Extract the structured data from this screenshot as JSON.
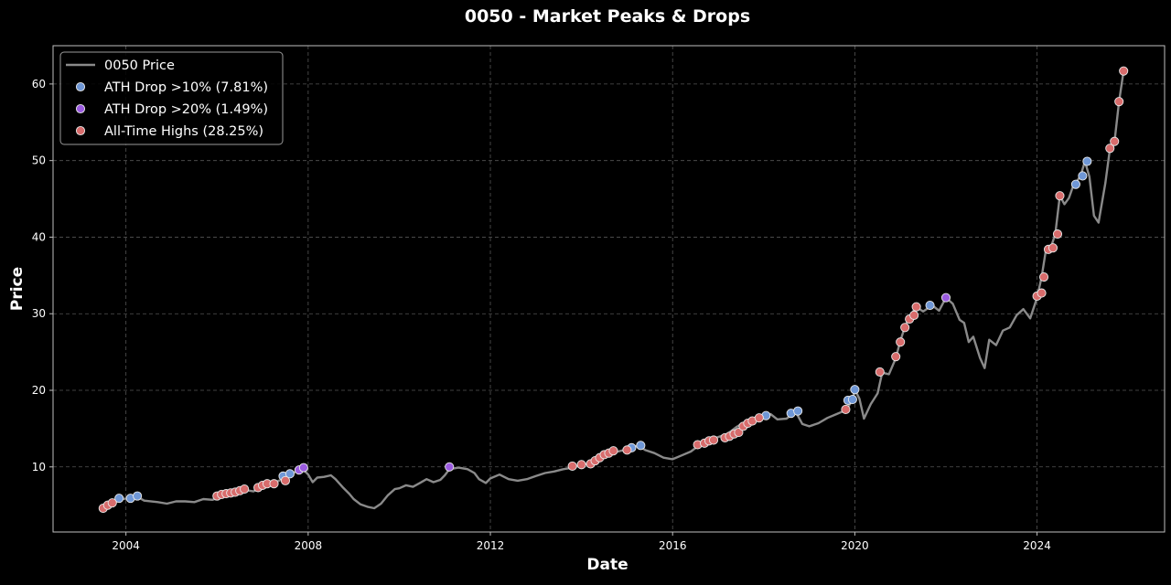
{
  "colors": {
    "background": "#000000",
    "price_line": "#8a8a8a",
    "ath_drop_10": "#6f97d6",
    "ath_drop_20": "#9b5be0",
    "all_time_high": "#d86c6c",
    "grid": "#555555",
    "axes": "#bfbfbf",
    "text": "#ffffff"
  },
  "chart_data": {
    "type": "line",
    "title": "0050 - Market Peaks & Drops",
    "xlabel": "Date",
    "ylabel": "Price",
    "xlim": [
      2002.4,
      2026.8
    ],
    "ylim": [
      1.5,
      65
    ],
    "x_ticks": [
      2004,
      2008,
      2012,
      2016,
      2020,
      2024
    ],
    "x_tick_labels": [
      "2004",
      "2008",
      "2012",
      "2016",
      "2020",
      "2024"
    ],
    "y_ticks": [
      10,
      20,
      30,
      40,
      50,
      60
    ],
    "y_tick_labels": [
      "10",
      "20",
      "30",
      "40",
      "50",
      "60"
    ],
    "grid": true,
    "legend_position": "top-left",
    "legend": [
      {
        "label": "0050 Price",
        "kind": "line",
        "series": "price"
      },
      {
        "label": "ATH Drop >10% (7.81%)",
        "kind": "marker",
        "series": "ath_drop_10"
      },
      {
        "label": "ATH Drop >20% (1.49%)",
        "kind": "marker",
        "series": "ath_drop_20"
      },
      {
        "label": "All-Time Highs (28.25%)",
        "kind": "marker",
        "series": "all_time_high"
      }
    ],
    "series": [
      {
        "id": "price",
        "name": "0050 Price",
        "kind": "line",
        "points": [
          [
            2003.5,
            4.6
          ],
          [
            2003.6,
            4.9
          ],
          [
            2003.7,
            5.2
          ],
          [
            2003.9,
            5.8
          ],
          [
            2004.1,
            5.9
          ],
          [
            2004.25,
            6.1
          ],
          [
            2004.4,
            5.6
          ],
          [
            2004.7,
            5.4
          ],
          [
            2004.9,
            5.2
          ],
          [
            2005.1,
            5.5
          ],
          [
            2005.3,
            5.5
          ],
          [
            2005.5,
            5.4
          ],
          [
            2005.7,
            5.8
          ],
          [
            2005.9,
            5.7
          ],
          [
            2006.0,
            5.9
          ],
          [
            2006.2,
            6.2
          ],
          [
            2006.3,
            6.4
          ],
          [
            2006.5,
            6.6
          ],
          [
            2006.6,
            7.0
          ],
          [
            2006.8,
            6.8
          ],
          [
            2007.0,
            7.4
          ],
          [
            2007.2,
            7.8
          ],
          [
            2007.4,
            8.3
          ],
          [
            2007.5,
            8.9
          ],
          [
            2007.7,
            9.3
          ],
          [
            2007.85,
            9.9
          ],
          [
            2008.0,
            9.0
          ],
          [
            2008.1,
            8.0
          ],
          [
            2008.2,
            8.6
          ],
          [
            2008.35,
            8.7
          ],
          [
            2008.5,
            8.9
          ],
          [
            2008.6,
            8.4
          ],
          [
            2008.75,
            7.4
          ],
          [
            2008.9,
            6.5
          ],
          [
            2009.0,
            5.8
          ],
          [
            2009.15,
            5.1
          ],
          [
            2009.3,
            4.8
          ],
          [
            2009.45,
            4.6
          ],
          [
            2009.6,
            5.2
          ],
          [
            2009.75,
            6.3
          ],
          [
            2009.9,
            7.1
          ],
          [
            2010.0,
            7.2
          ],
          [
            2010.15,
            7.6
          ],
          [
            2010.3,
            7.4
          ],
          [
            2010.45,
            7.9
          ],
          [
            2010.6,
            8.4
          ],
          [
            2010.75,
            8.0
          ],
          [
            2010.9,
            8.3
          ],
          [
            2011.0,
            8.9
          ],
          [
            2011.1,
            9.7
          ],
          [
            2011.3,
            9.9
          ],
          [
            2011.5,
            9.7
          ],
          [
            2011.65,
            9.2
          ],
          [
            2011.75,
            8.4
          ],
          [
            2011.9,
            7.9
          ],
          [
            2012.0,
            8.5
          ],
          [
            2012.2,
            9.0
          ],
          [
            2012.4,
            8.4
          ],
          [
            2012.6,
            8.2
          ],
          [
            2012.8,
            8.4
          ],
          [
            2013.0,
            8.8
          ],
          [
            2013.2,
            9.2
          ],
          [
            2013.4,
            9.4
          ],
          [
            2013.6,
            9.7
          ],
          [
            2013.8,
            9.9
          ],
          [
            2014.0,
            10.2
          ],
          [
            2014.2,
            10.5
          ],
          [
            2014.4,
            11.2
          ],
          [
            2014.6,
            11.8
          ],
          [
            2014.8,
            12.0
          ],
          [
            2015.0,
            12.3
          ],
          [
            2015.25,
            12.8
          ],
          [
            2015.4,
            12.2
          ],
          [
            2015.6,
            11.8
          ],
          [
            2015.8,
            11.2
          ],
          [
            2016.0,
            11.0
          ],
          [
            2016.2,
            11.5
          ],
          [
            2016.4,
            12.0
          ],
          [
            2016.6,
            12.9
          ],
          [
            2016.8,
            13.5
          ],
          [
            2017.0,
            13.9
          ],
          [
            2017.2,
            14.3
          ],
          [
            2017.4,
            15.2
          ],
          [
            2017.6,
            15.9
          ],
          [
            2017.8,
            16.4
          ],
          [
            2018.0,
            16.6
          ],
          [
            2018.15,
            16.9
          ],
          [
            2018.3,
            16.2
          ],
          [
            2018.5,
            16.3
          ],
          [
            2018.7,
            17.2
          ],
          [
            2018.85,
            15.6
          ],
          [
            2019.0,
            15.3
          ],
          [
            2019.2,
            15.7
          ],
          [
            2019.4,
            16.4
          ],
          [
            2019.6,
            16.9
          ],
          [
            2019.8,
            17.4
          ],
          [
            2019.95,
            18.7
          ],
          [
            2020.0,
            20.1
          ],
          [
            2020.1,
            18.9
          ],
          [
            2020.2,
            16.3
          ],
          [
            2020.35,
            18.2
          ],
          [
            2020.5,
            19.6
          ],
          [
            2020.6,
            22.3
          ],
          [
            2020.75,
            22.1
          ],
          [
            2020.9,
            24.2
          ],
          [
            2021.0,
            26.5
          ],
          [
            2021.1,
            28.3
          ],
          [
            2021.2,
            29.6
          ],
          [
            2021.35,
            30.9
          ],
          [
            2021.5,
            30.3
          ],
          [
            2021.7,
            31.1
          ],
          [
            2021.85,
            30.4
          ],
          [
            2022.0,
            32.1
          ],
          [
            2022.15,
            31.3
          ],
          [
            2022.3,
            29.2
          ],
          [
            2022.4,
            28.8
          ],
          [
            2022.5,
            26.3
          ],
          [
            2022.6,
            27.0
          ],
          [
            2022.75,
            24.2
          ],
          [
            2022.85,
            22.9
          ],
          [
            2022.95,
            26.6
          ],
          [
            2023.1,
            25.9
          ],
          [
            2023.25,
            27.8
          ],
          [
            2023.4,
            28.2
          ],
          [
            2023.55,
            29.8
          ],
          [
            2023.7,
            30.6
          ],
          [
            2023.85,
            29.4
          ],
          [
            2024.0,
            32.1
          ],
          [
            2024.1,
            34.8
          ],
          [
            2024.2,
            38.5
          ],
          [
            2024.3,
            38.6
          ],
          [
            2024.4,
            40.4
          ],
          [
            2024.5,
            45.4
          ],
          [
            2024.6,
            44.3
          ],
          [
            2024.7,
            45.1
          ],
          [
            2024.8,
            46.8
          ],
          [
            2024.95,
            47.9
          ],
          [
            2025.05,
            49.9
          ],
          [
            2025.15,
            47.9
          ],
          [
            2025.25,
            42.8
          ],
          [
            2025.35,
            41.9
          ],
          [
            2025.5,
            47.1
          ],
          [
            2025.6,
            51.5
          ],
          [
            2025.7,
            52.4
          ],
          [
            2025.8,
            57.7
          ],
          [
            2025.9,
            61.7
          ]
        ]
      },
      {
        "id": "ath_drop_10",
        "name": "ATH Drop >10% (7.81%)",
        "kind": "scatter",
        "points": [
          [
            2003.85,
            5.9
          ],
          [
            2004.1,
            5.9
          ],
          [
            2004.25,
            6.2
          ],
          [
            2007.45,
            8.8
          ],
          [
            2007.6,
            9.1
          ],
          [
            2015.1,
            12.5
          ],
          [
            2015.3,
            12.8
          ],
          [
            2018.05,
            16.7
          ],
          [
            2018.6,
            17.0
          ],
          [
            2018.75,
            17.3
          ],
          [
            2019.85,
            18.7
          ],
          [
            2019.95,
            18.8
          ],
          [
            2020.0,
            20.1
          ],
          [
            2021.65,
            31.1
          ],
          [
            2024.85,
            46.9
          ],
          [
            2025.0,
            48.0
          ],
          [
            2025.1,
            49.9
          ]
        ]
      },
      {
        "id": "ath_drop_20",
        "name": "ATH Drop >20% (1.49%)",
        "kind": "scatter",
        "points": [
          [
            2007.8,
            9.6
          ],
          [
            2007.9,
            9.9
          ],
          [
            2011.1,
            10.0
          ],
          [
            2022.0,
            32.1
          ]
        ]
      },
      {
        "id": "all_time_high",
        "name": "All-Time Highs (28.25%)",
        "kind": "scatter",
        "points": [
          [
            2003.5,
            4.6
          ],
          [
            2003.6,
            5.0
          ],
          [
            2003.7,
            5.3
          ],
          [
            2006.0,
            6.2
          ],
          [
            2006.1,
            6.4
          ],
          [
            2006.2,
            6.5
          ],
          [
            2006.3,
            6.6
          ],
          [
            2006.4,
            6.7
          ],
          [
            2006.5,
            6.9
          ],
          [
            2006.6,
            7.1
          ],
          [
            2006.9,
            7.3
          ],
          [
            2007.0,
            7.6
          ],
          [
            2007.1,
            7.8
          ],
          [
            2007.25,
            7.8
          ],
          [
            2007.5,
            8.2
          ],
          [
            2013.8,
            10.1
          ],
          [
            2014.0,
            10.3
          ],
          [
            2014.2,
            10.4
          ],
          [
            2014.3,
            10.8
          ],
          [
            2014.4,
            11.2
          ],
          [
            2014.5,
            11.6
          ],
          [
            2014.6,
            11.8
          ],
          [
            2014.7,
            12.1
          ],
          [
            2015.0,
            12.2
          ],
          [
            2016.55,
            12.9
          ],
          [
            2016.7,
            13.1
          ],
          [
            2016.8,
            13.4
          ],
          [
            2016.9,
            13.5
          ],
          [
            2017.15,
            13.8
          ],
          [
            2017.25,
            14.0
          ],
          [
            2017.35,
            14.3
          ],
          [
            2017.45,
            14.5
          ],
          [
            2017.55,
            15.3
          ],
          [
            2017.65,
            15.7
          ],
          [
            2017.75,
            16.0
          ],
          [
            2017.9,
            16.4
          ],
          [
            2019.8,
            17.5
          ],
          [
            2020.55,
            22.4
          ],
          [
            2020.9,
            24.4
          ],
          [
            2021.0,
            26.3
          ],
          [
            2021.1,
            28.2
          ],
          [
            2021.2,
            29.3
          ],
          [
            2021.3,
            29.8
          ],
          [
            2021.35,
            30.9
          ],
          [
            2024.0,
            32.3
          ],
          [
            2024.1,
            32.7
          ],
          [
            2024.15,
            34.8
          ],
          [
            2024.25,
            38.4
          ],
          [
            2024.35,
            38.6
          ],
          [
            2024.45,
            40.4
          ],
          [
            2024.5,
            45.4
          ],
          [
            2025.6,
            51.6
          ],
          [
            2025.7,
            52.5
          ],
          [
            2025.8,
            57.7
          ],
          [
            2025.9,
            61.7
          ]
        ]
      }
    ]
  }
}
